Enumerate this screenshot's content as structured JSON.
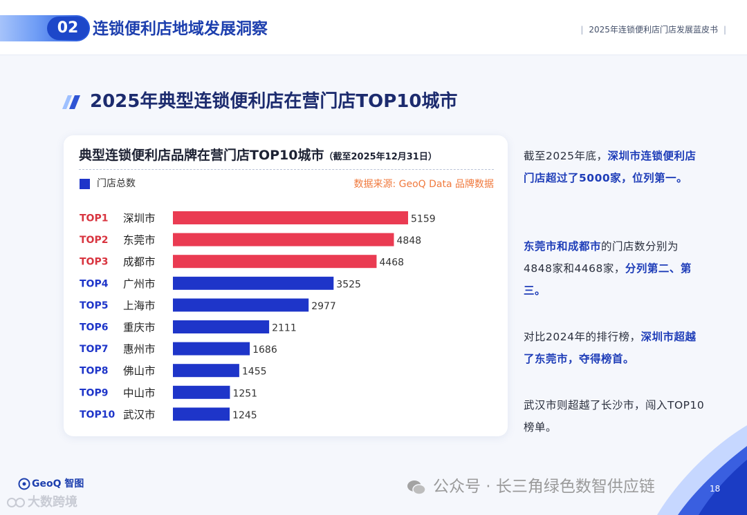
{
  "header": {
    "section_number": "02",
    "section_title": "连锁便利店地域发展洞察",
    "report_name": "2025年连锁便利店门店发展蓝皮书"
  },
  "main_title": "2025年典型连锁便利店在营门店TOP10城市",
  "chart_card": {
    "title": "典型连锁便利店品牌在营门店TOP10城市",
    "subtitle": "（截至2025年12月31日）",
    "legend": "门店总数",
    "source": "数据来源: GeoQ Data 品牌数据"
  },
  "chart_data": {
    "type": "bar",
    "orientation": "horizontal",
    "title": "典型连锁便利店品牌在营门店TOP10城市",
    "series": [
      {
        "name": "门店总数",
        "values": [
          5159,
          4848,
          4468,
          3525,
          2977,
          2111,
          1686,
          1455,
          1251,
          1245
        ]
      }
    ],
    "ranks": [
      "TOP1",
      "TOP2",
      "TOP3",
      "TOP4",
      "TOP5",
      "TOP6",
      "TOP7",
      "TOP8",
      "TOP9",
      "TOP10"
    ],
    "categories": [
      "深圳市",
      "东莞市",
      "成都市",
      "广州市",
      "上海市",
      "重庆市",
      "惠州市",
      "佛山市",
      "中山市",
      "武汉市"
    ],
    "top3_color": "#ea3b52",
    "other_color": "#1e35c9",
    "top3_rank_color": "#d8343f",
    "other_rank_color": "#1e35c9",
    "xlim": [
      0,
      5159
    ],
    "grid": false,
    "legend_position": "top-left"
  },
  "commentary": {
    "p1": {
      "t1": "截至2025年底，",
      "h1": "深圳市连锁便利店门店超过了5000家，位列第一。"
    },
    "p2": {
      "h1": "东莞市和成都市",
      "t1": "的门店数分别为4848家和4468家，",
      "h2": "分列第二、第三。"
    },
    "p3": {
      "t1": "对比2024年的排行榜，",
      "h1": "深圳市超越了东莞市，夺得榜首。"
    },
    "p4": {
      "t1": "武汉市则超越了长沙市，闯入TOP10榜单。"
    }
  },
  "footer": {
    "brand": "GeoQ 智图",
    "watermark_left": "大数跨境",
    "watermark_right": "公众号 · 长三角绿色数智供应链",
    "page_number": "18"
  },
  "colors": {
    "accent": "#1d3fae",
    "highlight": "#1e3db8",
    "source": "#f07a3e"
  }
}
